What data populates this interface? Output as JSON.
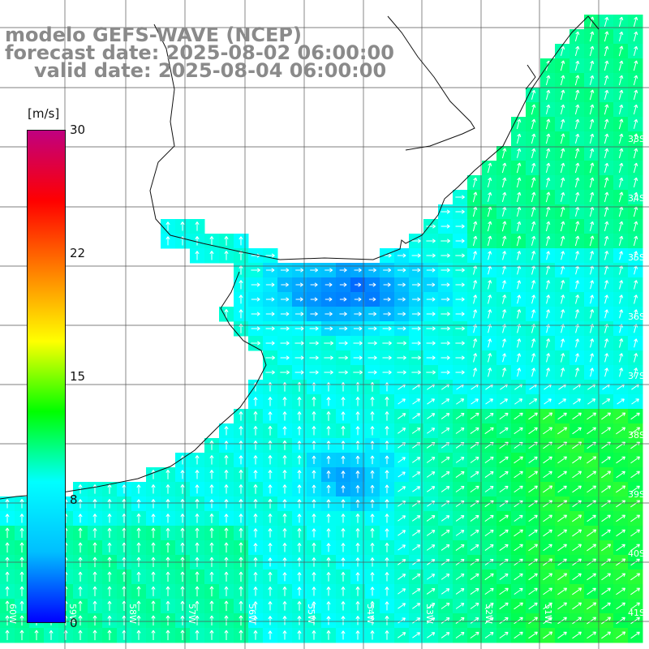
{
  "map": {
    "model_title": "modelo GEFS-WAVE (NCEP)",
    "forecast_line": "forecast date: 2025-08-02 06:00:00",
    "valid_line": "valid date: 2025-08-04 06:00:00",
    "variable": "wind speed with wind direction arrows",
    "region": "Rio de la Plata and southern Brazil / Uruguay / Argentina coast, South Atlantic",
    "colorbar": {
      "unit": "[m/s]",
      "ticks": [
        "30",
        "22",
        "15",
        "8",
        "0"
      ],
      "colors": [
        "#0000ff",
        "#00bfff",
        "#00ffff",
        "#00ff00",
        "#ffff00",
        "#ff8000",
        "#ff0000",
        "#c00080"
      ]
    },
    "lat_labels": [
      "33S",
      "34S",
      "35S",
      "36S",
      "37S",
      "38S",
      "39S",
      "40S",
      "41S"
    ],
    "lon_labels": [
      "60W",
      "59W",
      "58W",
      "57W",
      "56W",
      "55W",
      "54W",
      "53W",
      "52W",
      "51W"
    ],
    "colors": {
      "land": "#ffffff",
      "grid": "#555555",
      "coast": "#111111",
      "arrow": "#ffffff",
      "title": "#8a8a8a"
    }
  }
}
